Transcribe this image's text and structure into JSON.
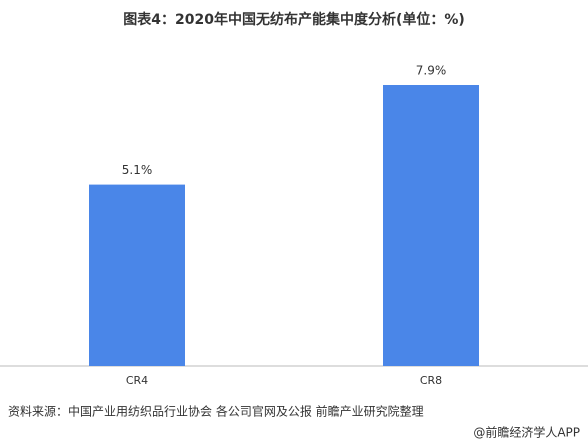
{
  "chart_data": {
    "type": "bar",
    "title": "图表4：2020年中国无纺布产能集中度分析(单位：%)",
    "categories": [
      "CR4",
      "CR8"
    ],
    "values": [
      5.1,
      7.9
    ],
    "value_labels": [
      "5.1%",
      "7.9%"
    ],
    "color": "#4a86e8",
    "source": "资料来源：中国产业用纺织品行业协会 各公司官网及公报 前瞻产业研究院整理",
    "footer": "@前瞻经济学人APP"
  }
}
